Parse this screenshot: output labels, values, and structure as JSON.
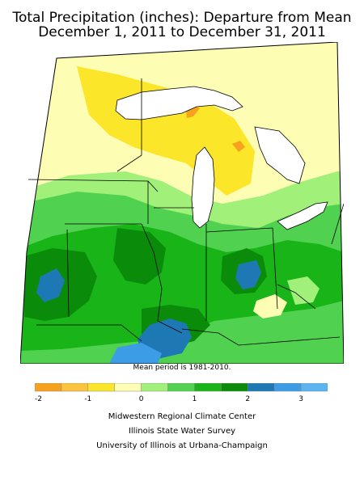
{
  "title_line1": "Total Precipitation (inches): Departure from Mean",
  "title_line2": "December 1, 2011 to December 31, 2011",
  "mean_note": "Mean period is 1981-2010.",
  "legend": {
    "colors": [
      "#f7a21f",
      "#fcc43e",
      "#fbe62a",
      "#fdfdb4",
      "#a0f07a",
      "#50d250",
      "#18b418",
      "#0a8c0a",
      "#1e78b4",
      "#3c9ce6",
      "#5ab4f0"
    ],
    "ticks": [
      "-2",
      "-1",
      "0",
      "1",
      "2",
      "3"
    ]
  },
  "credits": {
    "line1": "Midwestern Regional Climate Center",
    "line2": "Illinois State Water Survey",
    "line3": "University of Illinois at Urbana-Champaign"
  },
  "map_colors": {
    "lake": "#ffffff",
    "dry_orange": "#f7a21f",
    "dry_yellow": "#fbe62a",
    "pale_yellow": "#fdfdb4",
    "light_green": "#a0f07a",
    "green": "#50d250",
    "mid_green": "#18b418",
    "dark_green": "#0a8c0a",
    "blue": "#1e78b4",
    "light_blue": "#3c9ce6"
  }
}
